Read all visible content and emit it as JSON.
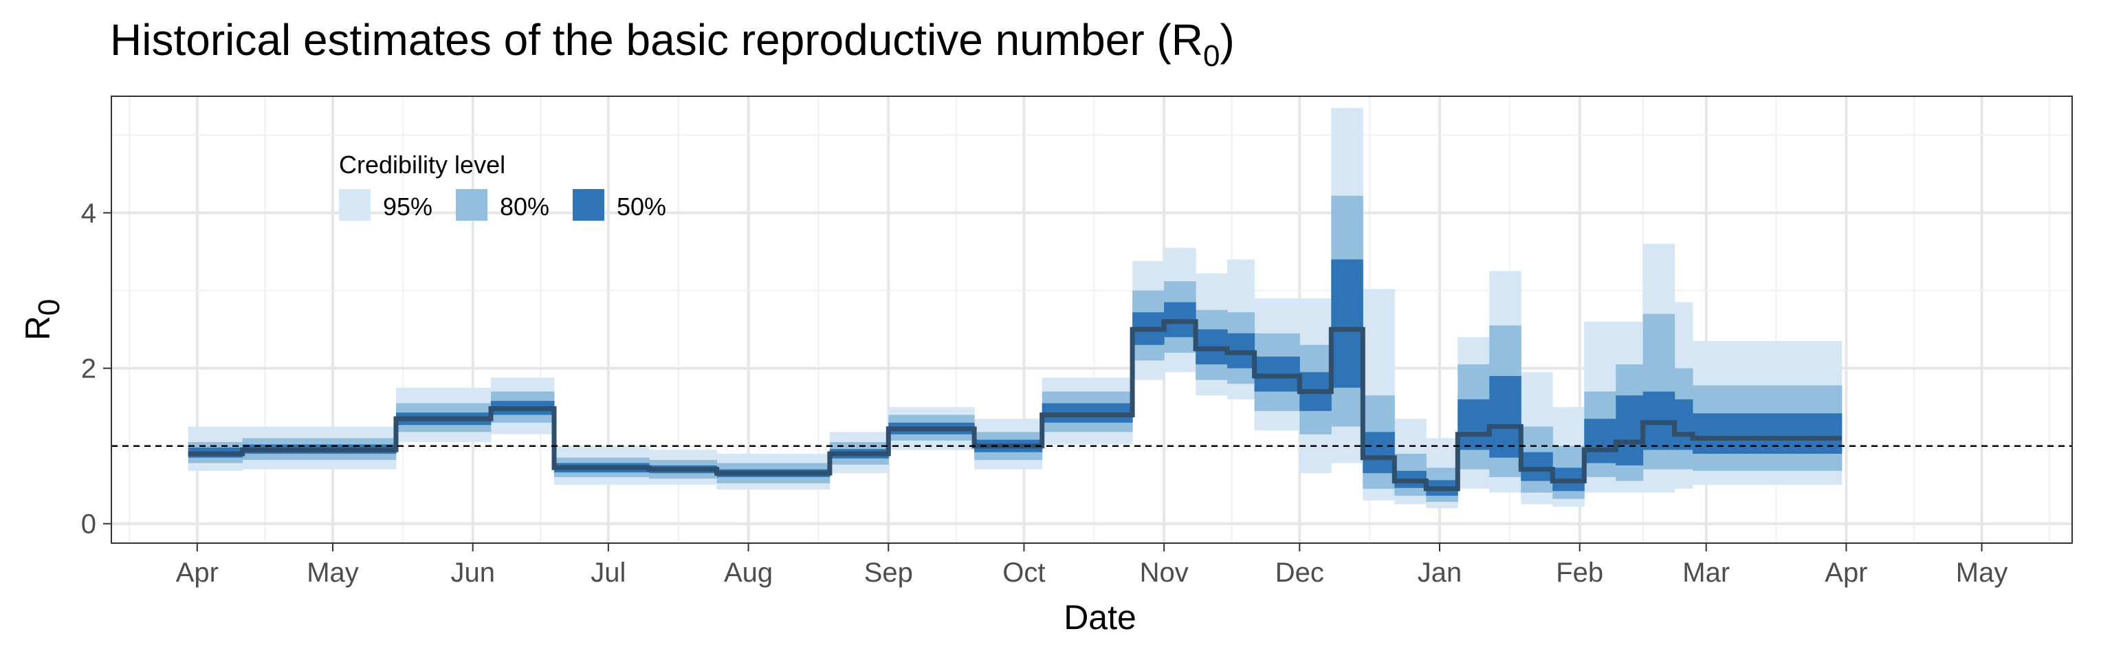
{
  "chart_data": {
    "type": "area",
    "title": "Historical estimates of the basic reproductive number (R",
    "title_subscript": "0",
    "title_suffix": ")",
    "xlabel": "Date",
    "ylabel": "R",
    "ylabel_subscript": "0",
    "x_range": [
      "2020-03-13",
      "2021-05-21"
    ],
    "ylim": [
      -0.25,
      5.5
    ],
    "y_ticks": [
      0,
      2,
      4
    ],
    "x_ticks": [
      {
        "date": "2020-04-01",
        "label": "Apr"
      },
      {
        "date": "2020-05-01",
        "label": "May"
      },
      {
        "date": "2020-06-01",
        "label": "Jun"
      },
      {
        "date": "2020-07-01",
        "label": "Jul"
      },
      {
        "date": "2020-08-01",
        "label": "Aug"
      },
      {
        "date": "2020-09-01",
        "label": "Sep"
      },
      {
        "date": "2020-10-01",
        "label": "Oct"
      },
      {
        "date": "2020-11-01",
        "label": "Nov"
      },
      {
        "date": "2020-12-01",
        "label": "Dec"
      },
      {
        "date": "2021-01-01",
        "label": "Jan"
      },
      {
        "date": "2021-02-01",
        "label": "Feb"
      },
      {
        "date": "2021-03-01",
        "label": "Mar"
      },
      {
        "date": "2021-04-01",
        "label": "Apr"
      },
      {
        "date": "2021-05-01",
        "label": "May"
      }
    ],
    "reference_line": 1,
    "grid": true,
    "legend": {
      "title": "Credibility level",
      "placement": "top-left",
      "items": [
        {
          "label": "95%",
          "color": "#d6e6f5"
        },
        {
          "label": "80%",
          "color": "#93bedd"
        },
        {
          "label": "50%",
          "color": "#2e74b6"
        }
      ]
    },
    "median_color": "#2f4f6d",
    "periods": [
      {
        "start": "2020-03-30",
        "median": 0.9,
        "ci50": [
          0.85,
          0.98
        ],
        "ci80": [
          0.78,
          1.05
        ],
        "ci95": [
          0.68,
          1.25
        ]
      },
      {
        "start": "2020-04-11",
        "median": 0.95,
        "ci50": [
          0.9,
          1.02
        ],
        "ci80": [
          0.82,
          1.1
        ],
        "ci95": [
          0.7,
          1.25
        ]
      },
      {
        "start": "2020-05-15",
        "median": 1.35,
        "ci50": [
          1.27,
          1.43
        ],
        "ci80": [
          1.18,
          1.55
        ],
        "ci95": [
          1.05,
          1.75
        ]
      },
      {
        "start": "2020-06-05",
        "median": 1.48,
        "ci50": [
          1.4,
          1.58
        ],
        "ci80": [
          1.3,
          1.7
        ],
        "ci95": [
          1.15,
          1.88
        ]
      },
      {
        "start": "2020-06-19",
        "median": 0.72,
        "ci50": [
          0.66,
          0.78
        ],
        "ci80": [
          0.6,
          0.85
        ],
        "ci95": [
          0.5,
          1.0
        ]
      },
      {
        "start": "2020-07-10",
        "median": 0.7,
        "ci50": [
          0.65,
          0.75
        ],
        "ci80": [
          0.58,
          0.82
        ],
        "ci95": [
          0.5,
          0.95
        ]
      },
      {
        "start": "2020-07-25",
        "median": 0.65,
        "ci50": [
          0.6,
          0.7
        ],
        "ci80": [
          0.52,
          0.78
        ],
        "ci95": [
          0.44,
          0.9
        ]
      },
      {
        "start": "2020-08-19",
        "median": 0.9,
        "ci50": [
          0.84,
          0.96
        ],
        "ci80": [
          0.76,
          1.05
        ],
        "ci95": [
          0.65,
          1.18
        ]
      },
      {
        "start": "2020-09-01",
        "median": 1.22,
        "ci50": [
          1.15,
          1.3
        ],
        "ci80": [
          1.07,
          1.4
        ],
        "ci95": [
          0.95,
          1.5
        ]
      },
      {
        "start": "2020-09-20",
        "median": 1.0,
        "ci50": [
          0.92,
          1.08
        ],
        "ci80": [
          0.82,
          1.18
        ],
        "ci95": [
          0.7,
          1.35
        ]
      },
      {
        "start": "2020-10-05",
        "median": 1.4,
        "ci50": [
          1.3,
          1.55
        ],
        "ci80": [
          1.18,
          1.7
        ],
        "ci95": [
          1.02,
          1.88
        ]
      },
      {
        "start": "2020-10-25",
        "median": 2.5,
        "ci50": [
          2.3,
          2.72
        ],
        "ci80": [
          2.1,
          3.0
        ],
        "ci95": [
          1.85,
          3.38
        ]
      },
      {
        "start": "2020-11-01",
        "median": 2.6,
        "ci50": [
          2.4,
          2.85
        ],
        "ci80": [
          2.2,
          3.12
        ],
        "ci95": [
          1.95,
          3.55
        ]
      },
      {
        "start": "2020-11-08",
        "median": 2.25,
        "ci50": [
          2.05,
          2.5
        ],
        "ci80": [
          1.85,
          2.75
        ],
        "ci95": [
          1.65,
          3.22
        ]
      },
      {
        "start": "2020-11-15",
        "median": 2.2,
        "ci50": [
          2.0,
          2.45
        ],
        "ci80": [
          1.8,
          2.72
        ],
        "ci95": [
          1.6,
          3.4
        ]
      },
      {
        "start": "2020-11-21",
        "median": 1.9,
        "ci50": [
          1.7,
          2.15
        ],
        "ci80": [
          1.45,
          2.45
        ],
        "ci95": [
          1.2,
          2.9
        ]
      },
      {
        "start": "2020-12-01",
        "median": 1.7,
        "ci50": [
          1.45,
          1.95
        ],
        "ci80": [
          1.15,
          2.3
        ],
        "ci95": [
          0.65,
          2.9
        ]
      },
      {
        "start": "2020-12-08",
        "median": 2.5,
        "ci50": [
          1.75,
          3.4
        ],
        "ci80": [
          1.25,
          4.22
        ],
        "ci95": [
          0.78,
          5.35
        ]
      },
      {
        "start": "2020-12-15",
        "median": 0.85,
        "ci50": [
          0.65,
          1.18
        ],
        "ci80": [
          0.45,
          1.65
        ],
        "ci95": [
          0.3,
          3.02
        ]
      },
      {
        "start": "2020-12-22",
        "median": 0.55,
        "ci50": [
          0.46,
          0.68
        ],
        "ci80": [
          0.36,
          0.9
        ],
        "ci95": [
          0.25,
          1.35
        ]
      },
      {
        "start": "2020-12-29",
        "median": 0.45,
        "ci50": [
          0.36,
          0.56
        ],
        "ci80": [
          0.28,
          0.72
        ],
        "ci95": [
          0.2,
          1.1
        ]
      },
      {
        "start": "2021-01-05",
        "median": 1.15,
        "ci50": [
          0.95,
          1.6
        ],
        "ci80": [
          0.7,
          2.05
        ],
        "ci95": [
          0.45,
          2.4
        ]
      },
      {
        "start": "2021-01-12",
        "median": 1.25,
        "ci50": [
          0.85,
          1.9
        ],
        "ci80": [
          0.6,
          2.55
        ],
        "ci95": [
          0.4,
          3.25
        ]
      },
      {
        "start": "2021-01-19",
        "median": 0.7,
        "ci50": [
          0.55,
          0.92
        ],
        "ci80": [
          0.4,
          1.25
        ],
        "ci95": [
          0.25,
          1.95
        ]
      },
      {
        "start": "2021-01-26",
        "median": 0.55,
        "ci50": [
          0.42,
          0.72
        ],
        "ci80": [
          0.32,
          1.0
        ],
        "ci95": [
          0.22,
          1.5
        ]
      },
      {
        "start": "2021-02-02",
        "median": 0.95,
        "ci50": [
          0.78,
          1.35
        ],
        "ci80": [
          0.6,
          1.7
        ],
        "ci95": [
          0.4,
          2.6
        ]
      },
      {
        "start": "2021-02-09",
        "median": 1.05,
        "ci50": [
          0.75,
          1.65
        ],
        "ci80": [
          0.55,
          2.05
        ],
        "ci95": [
          0.4,
          2.6
        ]
      },
      {
        "start": "2021-02-15",
        "median": 1.3,
        "ci50": [
          0.95,
          1.7
        ],
        "ci80": [
          0.7,
          2.7
        ],
        "ci95": [
          0.4,
          3.6
        ]
      },
      {
        "start": "2021-02-22",
        "median": 1.15,
        "ci50": [
          0.95,
          1.6
        ],
        "ci80": [
          0.7,
          2.0
        ],
        "ci95": [
          0.45,
          2.85
        ]
      },
      {
        "start": "2021-02-26",
        "median": 1.1,
        "ci50": [
          0.9,
          1.42
        ],
        "ci80": [
          0.68,
          1.78
        ],
        "ci95": [
          0.5,
          2.35
        ]
      }
    ],
    "series_end": "2021-03-31"
  }
}
